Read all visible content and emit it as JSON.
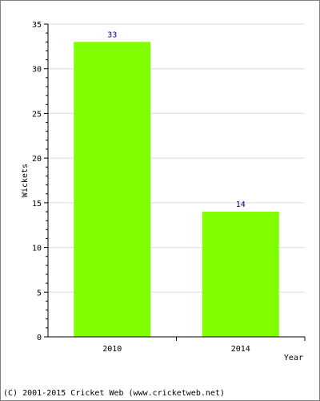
{
  "chart_data": {
    "type": "bar",
    "categories": [
      "2010",
      "2014"
    ],
    "values": [
      33,
      14
    ],
    "data_labels": [
      "33",
      "14"
    ],
    "xlabel": "Year",
    "ylabel": "Wickets",
    "ylim": [
      0,
      35
    ],
    "yticks": [
      "0",
      "5",
      "10",
      "15",
      "20",
      "25",
      "30",
      "35"
    ],
    "grid": true,
    "bar_color": "#80ff00"
  },
  "footer": {
    "copyright": "(C) 2001-2015 Cricket Web (www.cricketweb.net)"
  }
}
